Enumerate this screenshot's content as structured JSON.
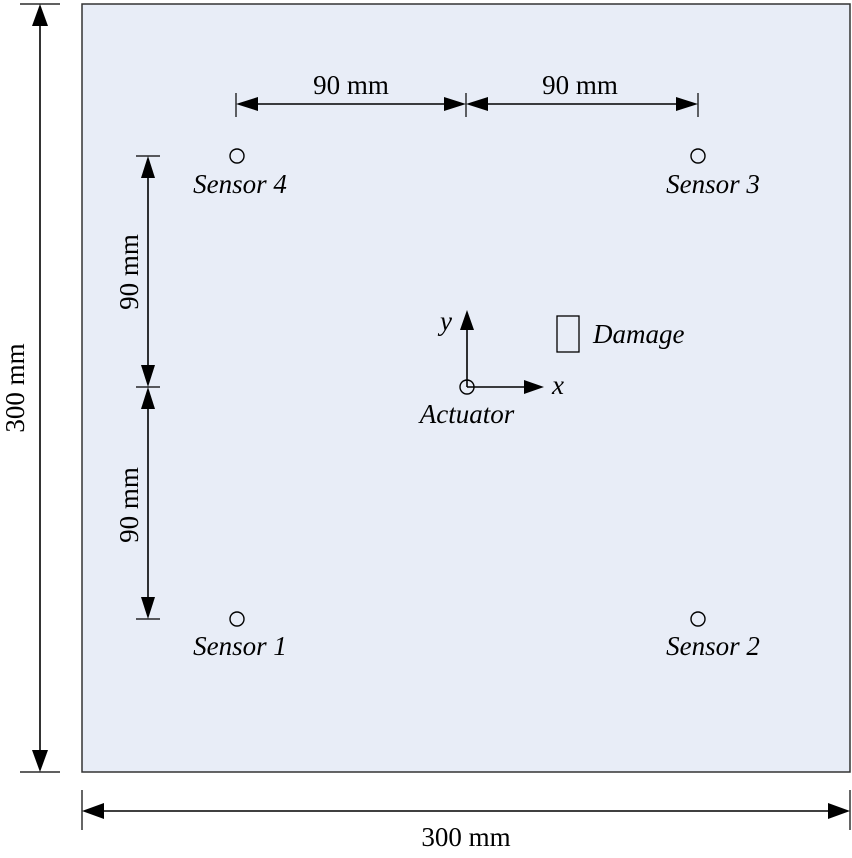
{
  "plate": {
    "fill": "#e8edf7",
    "border": "#333333",
    "width_label": "300 mm",
    "height_label": "300 mm"
  },
  "dimensions": {
    "top_left": "90 mm",
    "top_right": "90 mm",
    "left_upper": "90 mm",
    "left_lower": "90 mm"
  },
  "sensors": {
    "s1": "Sensor 1",
    "s2": "Sensor 2",
    "s3": "Sensor 3",
    "s4": "Sensor 4"
  },
  "actuator": {
    "label": "Actuator"
  },
  "axes": {
    "x_label": "x",
    "y_label": "y"
  },
  "damage": {
    "label": "Damage"
  }
}
